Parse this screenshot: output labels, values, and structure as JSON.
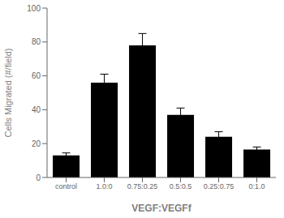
{
  "chart_data": {
    "type": "bar",
    "categories": [
      "control",
      "1.0:0",
      "0.75:0.25",
      "0.5:0.5",
      "0.25:0.75",
      "0:1.0"
    ],
    "values": [
      13,
      56,
      78,
      37,
      24,
      16.5
    ],
    "errors": [
      1.5,
      5,
      7,
      4,
      3,
      1.5
    ],
    "color": "#000000",
    "ylabel": "Cells Migrated (#/field)",
    "xlabel": "VEGF:VEGFf",
    "ylim": [
      0,
      100
    ],
    "yticks": [
      0,
      20,
      40,
      60,
      80,
      100
    ],
    "grid": false
  }
}
